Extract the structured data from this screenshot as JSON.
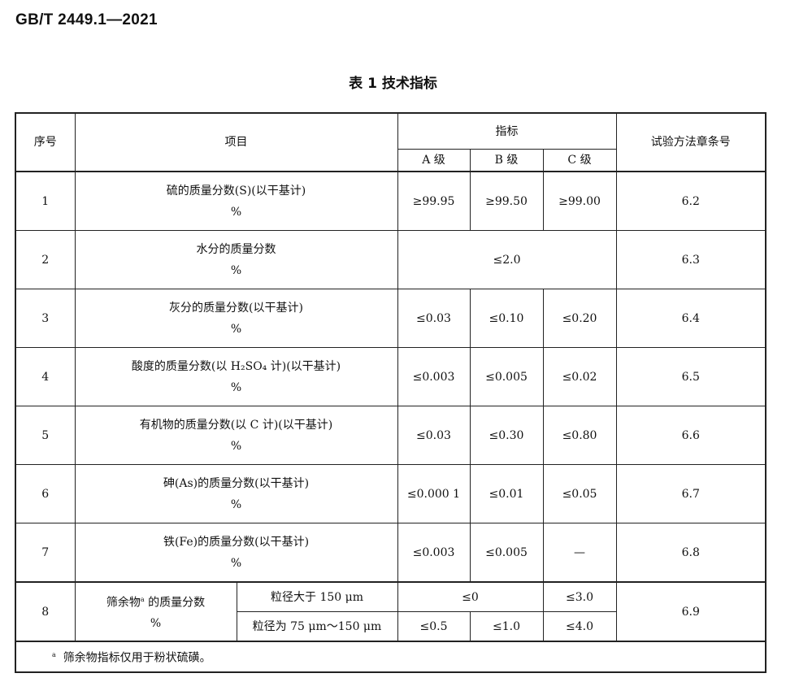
{
  "header": {
    "standard_number": "GB/T 2449.1—2021"
  },
  "table_caption": "表 1  技术指标",
  "table": {
    "headers": {
      "seq": "序号",
      "item": "项目",
      "indicator": "指标",
      "grade_a": "A 级",
      "grade_b": "B 级",
      "grade_c": "C 级",
      "method": "试验方法章条号"
    },
    "unit": "%",
    "rows": [
      {
        "seq": "1",
        "item": "硫的质量分数(S)(以干基计)",
        "a": "≥99.95",
        "b": "≥99.50",
        "c": "≥99.00",
        "method": "6.2"
      },
      {
        "seq": "2",
        "item": "水分的质量分数",
        "merged": "≤2.0",
        "method": "6.3"
      },
      {
        "seq": "3",
        "item": "灰分的质量分数(以干基计)",
        "a": "≤0.03",
        "b": "≤0.10",
        "c": "≤0.20",
        "method": "6.4"
      },
      {
        "seq": "4",
        "item": "酸度的质量分数(以 H₂SO₄ 计)(以干基计)",
        "a": "≤0.003",
        "b": "≤0.005",
        "c": "≤0.02",
        "method": "6.5"
      },
      {
        "seq": "5",
        "item": "有机物的质量分数(以 C 计)(以干基计)",
        "a": "≤0.03",
        "b": "≤0.30",
        "c": "≤0.80",
        "method": "6.6"
      },
      {
        "seq": "6",
        "item": "砷(As)的质量分数(以干基计)",
        "a": "≤0.000 1",
        "b": "≤0.01",
        "c": "≤0.05",
        "method": "6.7"
      },
      {
        "seq": "7",
        "item": "铁(Fe)的质量分数(以干基计)",
        "a": "≤0.003",
        "b": "≤0.005",
        "c": "—",
        "method": "6.8"
      }
    ],
    "row8": {
      "seq": "8",
      "item": "筛余物",
      "item_note_mark": "a",
      "item_rest": " 的质量分数",
      "sub1": {
        "label": "粒径大于 150 μm",
        "ab": "≤0",
        "c": "≤3.0"
      },
      "sub2": {
        "label": "粒径为 75 μm～150 μm",
        "a": "≤0.5",
        "b": "≤1.0",
        "c": "≤4.0"
      },
      "method": "6.9"
    },
    "footnote": {
      "mark": "a",
      "text": "筛余物指标仅用于粉状硫磺。"
    }
  }
}
